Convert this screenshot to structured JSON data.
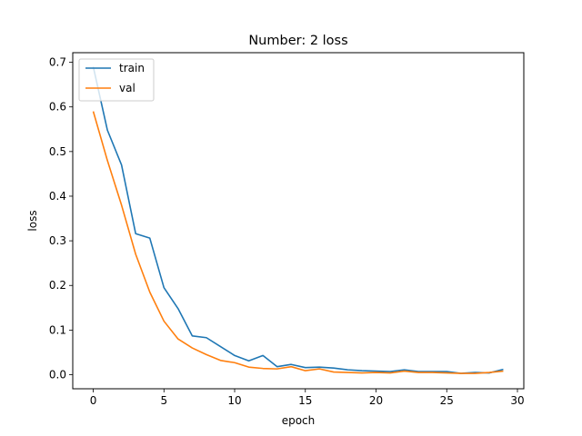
{
  "chart_data": {
    "type": "line",
    "title": "Number: 2 loss",
    "xlabel": "epoch",
    "ylabel": "loss",
    "xlim": [
      -1.45,
      30.45
    ],
    "ylim": [
      -0.0315,
      0.7215
    ],
    "xticks": [
      0,
      5,
      10,
      15,
      20,
      25,
      30
    ],
    "yticks": [
      0.0,
      0.1,
      0.2,
      0.3,
      0.4,
      0.5,
      0.6,
      0.7
    ],
    "grid": false,
    "legend": {
      "loc": "upper left"
    },
    "x": [
      0,
      1,
      2,
      3,
      4,
      5,
      6,
      7,
      8,
      9,
      10,
      11,
      12,
      13,
      14,
      15,
      16,
      17,
      18,
      19,
      20,
      21,
      22,
      23,
      24,
      25,
      26,
      27,
      28,
      29
    ],
    "series": [
      {
        "name": "train",
        "color": "#1f77b4",
        "values": [
          0.69,
          0.548,
          0.47,
          0.316,
          0.306,
          0.195,
          0.148,
          0.087,
          0.083,
          0.063,
          0.043,
          0.031,
          0.043,
          0.018,
          0.023,
          0.016,
          0.017,
          0.015,
          0.011,
          0.009,
          0.008,
          0.007,
          0.011,
          0.007,
          0.007,
          0.007,
          0.003,
          0.005,
          0.004,
          0.012
        ]
      },
      {
        "name": "val",
        "color": "#ff7f0e",
        "values": [
          0.59,
          0.48,
          0.38,
          0.27,
          0.185,
          0.12,
          0.08,
          0.06,
          0.045,
          0.032,
          0.027,
          0.017,
          0.014,
          0.013,
          0.018,
          0.009,
          0.013,
          0.006,
          0.005,
          0.004,
          0.005,
          0.004,
          0.008,
          0.005,
          0.005,
          0.004,
          0.003,
          0.003,
          0.005,
          0.008
        ]
      }
    ]
  }
}
